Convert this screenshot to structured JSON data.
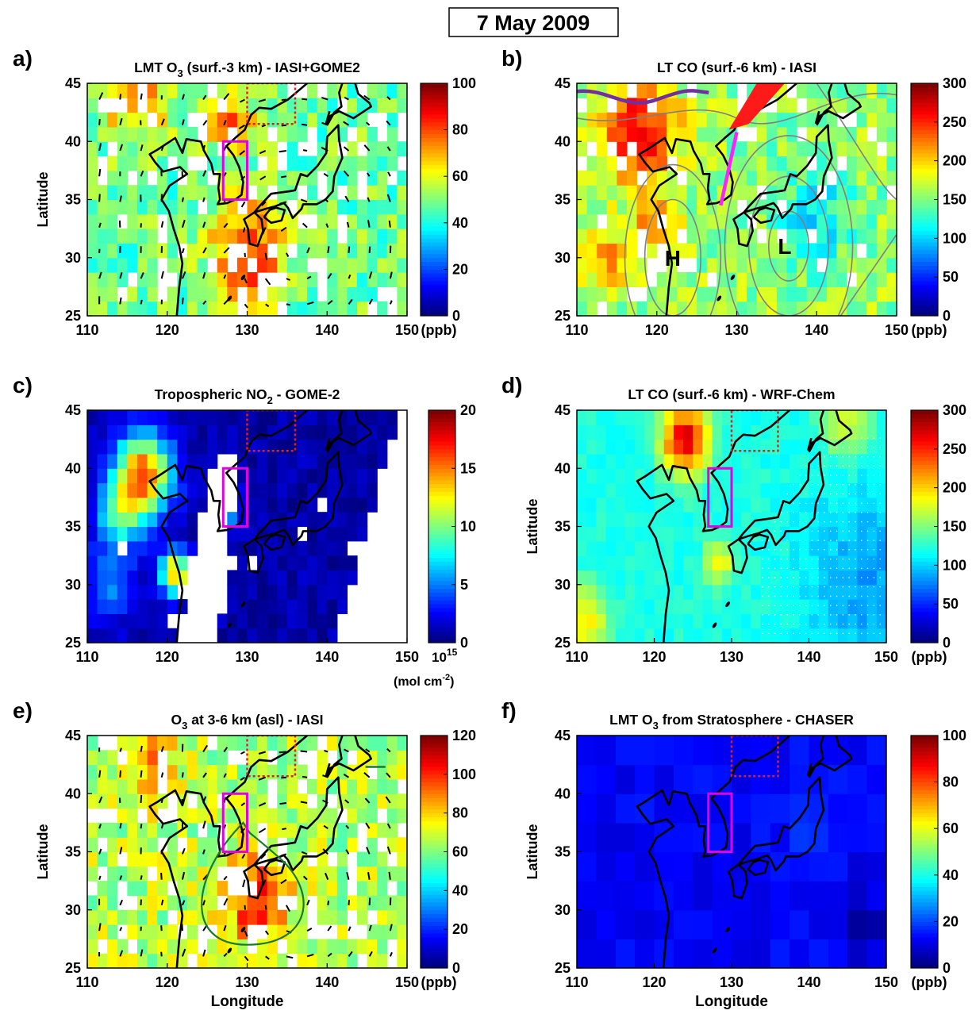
{
  "figure": {
    "date_title": "7 May 2009",
    "panels": [
      {
        "id": "a",
        "letter": "a)",
        "title_parts": [
          [
            "LMT O",
            ""
          ],
          [
            "3",
            "sub"
          ],
          [
            " (surf.-3 km) - IASI+GOME2",
            ""
          ]
        ],
        "colormap": "jet",
        "cbar_ticks": [
          "0",
          "20",
          "40",
          "60",
          "80",
          "100"
        ],
        "cbar_unit": "(ppb)",
        "xticks": [
          "110",
          "120",
          "130",
          "140",
          "150"
        ],
        "yticks": [
          "25",
          "30",
          "35",
          "40",
          "45"
        ],
        "ylabel": "Latitude",
        "xlabel": "",
        "base_level": 0.48,
        "noise": 0.1,
        "missing": 0.16,
        "hotspots": [
          {
            "lon": 130,
            "lat": 30.5,
            "r": 4.5,
            "amp": 0.38
          },
          {
            "lon": 116,
            "lat": 44,
            "r": 4,
            "amp": 0.28
          },
          {
            "lon": 128,
            "lat": 41.5,
            "r": 2.5,
            "amp": 0.4
          }
        ],
        "wind_arrows": true,
        "magenta_box": true,
        "red_box": true,
        "contours": false,
        "hl": [],
        "flow_line": false
      },
      {
        "id": "b",
        "letter": "b)",
        "title_parts": [
          [
            "LT CO (surf.-6 km) - IASI",
            ""
          ]
        ],
        "colormap": "jet",
        "cbar_ticks": [
          "0",
          "50",
          "100",
          "150",
          "200",
          "250",
          "300"
        ],
        "cbar_unit": "(ppb)",
        "xticks": [
          "110",
          "120",
          "130",
          "140",
          "150"
        ],
        "yticks": [
          "25",
          "30",
          "35",
          "40",
          "45"
        ],
        "ylabel": "",
        "xlabel": "",
        "base_level": 0.52,
        "noise": 0.09,
        "missing": 0.12,
        "hotspots": [
          {
            "lon": 118,
            "lat": 41,
            "r": 4.5,
            "amp": 0.38
          },
          {
            "lon": 120,
            "lat": 33,
            "r": 2.5,
            "amp": 0.25
          },
          {
            "lon": 114,
            "lat": 30,
            "r": 3,
            "amp": 0.2
          },
          {
            "lon": 140,
            "lat": 34,
            "r": 5,
            "amp": -0.15
          }
        ],
        "wind_arrows": false,
        "magenta_box": false,
        "red_box": false,
        "contours": true,
        "hl": [
          {
            "label": "H",
            "lon": 122,
            "lat": 30
          },
          {
            "label": "L",
            "lon": 136,
            "lat": 31
          }
        ],
        "flow_line": true
      },
      {
        "id": "c",
        "letter": "c)",
        "title_parts": [
          [
            "Tropospheric NO",
            ""
          ],
          [
            "2",
            "sub"
          ],
          [
            " - GOME-2",
            ""
          ]
        ],
        "colormap": "jet",
        "cbar_ticks": [
          "0",
          "5",
          "10",
          "15",
          "20"
        ],
        "cbar_unit": "(mol cm",
        "cbar_unit_sup": "-2",
        "cbar_unit_end": ")",
        "cbar_exp_base": "10",
        "cbar_exp_pow": "15",
        "xticks": [
          "110",
          "120",
          "130",
          "140",
          "150"
        ],
        "yticks": [
          "25",
          "30",
          "35",
          "40",
          "45"
        ],
        "ylabel": "",
        "xlabel": "",
        "base_level": 0.04,
        "noise": 0.04,
        "missing": 0.02,
        "hotspots": [
          {
            "lon": 117,
            "lat": 39.5,
            "r": 3.5,
            "amp": 0.75
          },
          {
            "lon": 114,
            "lat": 36,
            "r": 3,
            "amp": 0.35
          },
          {
            "lon": 121,
            "lat": 31,
            "r": 1.8,
            "amp": 0.7
          },
          {
            "lon": 127.5,
            "lat": 37,
            "r": 1.3,
            "amp": 0.75
          },
          {
            "lon": 113,
            "lat": 30,
            "r": 3,
            "amp": 0.22
          }
        ],
        "gap_band": true,
        "wind_arrows": false,
        "magenta_box": true,
        "red_box": true,
        "contours": false,
        "hl": [],
        "flow_line": false
      },
      {
        "id": "d",
        "letter": "d)",
        "title_parts": [
          [
            "LT CO (surf.-6 km) - WRF-Chem",
            ""
          ]
        ],
        "colormap": "jet",
        "cbar_ticks": [
          "0",
          "50",
          "100",
          "150",
          "200",
          "250",
          "300"
        ],
        "cbar_unit": "(ppb)",
        "xticks": [
          "110",
          "120",
          "130",
          "140",
          "150"
        ],
        "yticks": [
          "25",
          "30",
          "35",
          "40",
          "45"
        ],
        "ylabel": "Latitude",
        "xlabel": "",
        "base_level": 0.4,
        "noise": 0.03,
        "missing": 0.0,
        "hotspots": [
          {
            "lon": 124,
            "lat": 42.5,
            "r": 3,
            "amp": 0.52
          },
          {
            "lon": 128.5,
            "lat": 32,
            "r": 2,
            "amp": 0.22
          },
          {
            "lon": 111,
            "lat": 27,
            "r": 3,
            "amp": 0.25
          },
          {
            "lon": 145,
            "lat": 44,
            "r": 3,
            "amp": 0.2
          },
          {
            "lon": 148,
            "lat": 30,
            "r": 8,
            "amp": -0.12
          }
        ],
        "wind_arrows": false,
        "stipple": true,
        "magenta_box": true,
        "red_box": true,
        "contours": false,
        "hl": [],
        "flow_line": false
      },
      {
        "id": "e",
        "letter": "e)",
        "title_parts": [
          [
            "O",
            ""
          ],
          [
            "3",
            "sub"
          ],
          [
            " at 3-6 km (asl) - IASI",
            ""
          ]
        ],
        "colormap": "jet",
        "cbar_ticks": [
          "0",
          "20",
          "40",
          "60",
          "80",
          "100",
          "120"
        ],
        "cbar_unit": "(ppb)",
        "xticks": [
          "110",
          "120",
          "130",
          "140",
          "150"
        ],
        "yticks": [
          "25",
          "30",
          "35",
          "40",
          "45"
        ],
        "ylabel": "Latitude",
        "xlabel": "Longitude",
        "base_level": 0.55,
        "noise": 0.1,
        "missing": 0.2,
        "hotspots": [
          {
            "lon": 131,
            "lat": 31,
            "r": 4,
            "amp": 0.3
          },
          {
            "lon": 118,
            "lat": 43.5,
            "r": 4,
            "amp": 0.15
          }
        ],
        "wind_arrows": true,
        "green_loop": true,
        "magenta_box": true,
        "red_box": true,
        "contours": false,
        "hl": [],
        "flow_line": false
      },
      {
        "id": "f",
        "letter": "f)",
        "title_parts": [
          [
            "LMT O",
            ""
          ],
          [
            "3",
            "sub"
          ],
          [
            " from Stratosphere - CHASER",
            ""
          ]
        ],
        "colormap": "jet",
        "cbar_ticks": [
          "0",
          "20",
          "40",
          "60",
          "80",
          "100"
        ],
        "cbar_unit": "(ppb)",
        "xticks": [
          "110",
          "120",
          "130",
          "140",
          "150"
        ],
        "yticks": [
          "25",
          "30",
          "35",
          "40",
          "45"
        ],
        "ylabel": "Latitude",
        "xlabel": "Longitude",
        "base_level": 0.12,
        "noise": 0.03,
        "missing": 0.0,
        "hotspots": [
          {
            "lon": 140,
            "lat": 38,
            "r": 4,
            "amp": 0.07
          },
          {
            "lon": 147,
            "lat": 29,
            "r": 3,
            "amp": -0.08
          }
        ],
        "coarse": true,
        "wind_arrows": false,
        "magenta_box": true,
        "red_box": true,
        "contours": false,
        "hl": [],
        "flow_line": false
      }
    ]
  },
  "chart_data": {
    "type": "heatmap",
    "title": "7 May 2009",
    "panels": [
      {
        "panel": "a)",
        "title": "LMT O3 (surf.-3 km) - IASI+GOME2",
        "xlim": [
          110,
          150
        ],
        "ylim": [
          25,
          45
        ],
        "clim": [
          0,
          100
        ],
        "unit": "(ppb)",
        "ylabel": "Latitude"
      },
      {
        "panel": "b)",
        "title": "LT CO (surf.-6 km) - IASI",
        "xlim": [
          110,
          150
        ],
        "ylim": [
          25,
          45
        ],
        "clim": [
          0,
          300
        ],
        "unit": "(ppb)",
        "annotations": [
          "H",
          "L"
        ]
      },
      {
        "panel": "c)",
        "title": "Tropospheric NO2 - GOME-2",
        "xlim": [
          110,
          150
        ],
        "ylim": [
          25,
          45
        ],
        "clim": [
          0,
          20
        ],
        "unit": "10^15 (mol cm-2)"
      },
      {
        "panel": "d)",
        "title": "LT CO (surf.-6 km) - WRF-Chem",
        "xlim": [
          110,
          150
        ],
        "ylim": [
          25,
          45
        ],
        "clim": [
          0,
          300
        ],
        "unit": "(ppb)",
        "ylabel": "Latitude"
      },
      {
        "panel": "e)",
        "title": "O3 at 3-6 km (asl) - IASI",
        "xlim": [
          110,
          150
        ],
        "ylim": [
          25,
          45
        ],
        "clim": [
          0,
          120
        ],
        "unit": "(ppb)",
        "xlabel": "Longitude",
        "ylabel": "Latitude"
      },
      {
        "panel": "f)",
        "title": "LMT O3 from Stratosphere - CHASER",
        "xlim": [
          110,
          150
        ],
        "ylim": [
          25,
          45
        ],
        "clim": [
          0,
          100
        ],
        "unit": "(ppb)",
        "xlabel": "Longitude",
        "ylabel": "Latitude"
      }
    ],
    "magenta_box": {
      "lon": [
        127,
        130
      ],
      "lat": [
        35,
        40
      ]
    },
    "red_dotted_box": {
      "lon": [
        130,
        136
      ],
      "lat": [
        41.5,
        45
      ]
    }
  }
}
